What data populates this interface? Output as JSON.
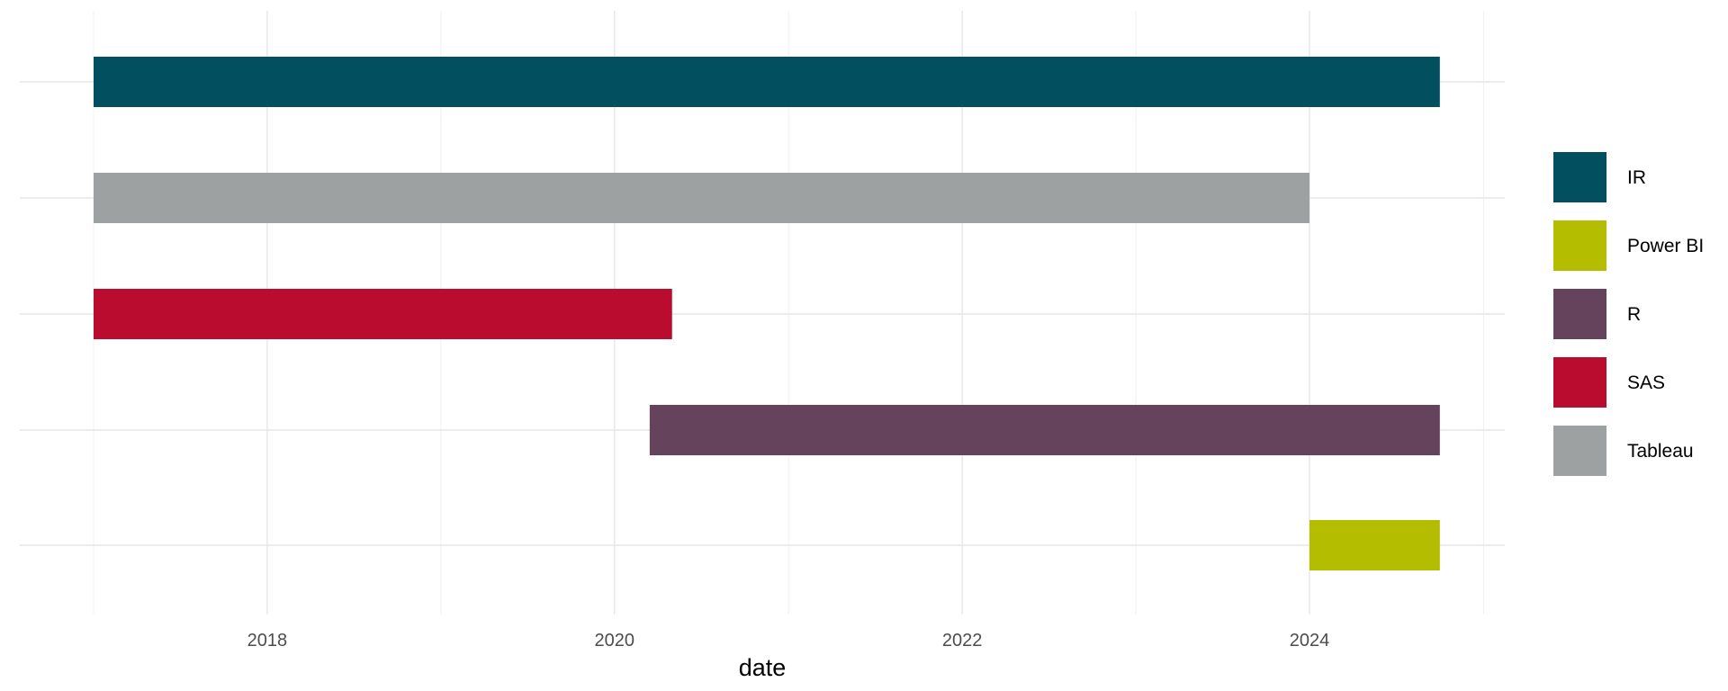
{
  "chart_data": {
    "type": "bar",
    "orientation": "horizontal",
    "xlabel": "date",
    "ylabel": "",
    "x_axis_type": "date",
    "xlim": [
      "2016-10-15",
      "2025-03-15"
    ],
    "x_ticks": [
      {
        "date": "2018-01-01",
        "label": "2018"
      },
      {
        "date": "2020-01-01",
        "label": "2020"
      },
      {
        "date": "2022-01-01",
        "label": "2022"
      },
      {
        "date": "2024-01-01",
        "label": "2024"
      }
    ],
    "x_minor_ticks": [
      "2017-01-01",
      "2019-01-01",
      "2021-01-01",
      "2023-01-01",
      "2025-01-01"
    ],
    "grid": true,
    "legend_position": "right",
    "series": [
      {
        "name": "IR",
        "color": "#02505F",
        "row": 1,
        "start": "2017-01-01",
        "end": "2024-10-01"
      },
      {
        "name": "Tableau",
        "color": "#9DA1A1",
        "row": 2,
        "start": "2017-01-01",
        "end": "2024-01-01"
      },
      {
        "name": "SAS",
        "color": "#BA0C2F",
        "row": 3,
        "start": "2017-01-01",
        "end": "2020-05-01"
      },
      {
        "name": "R",
        "color": "#65435C",
        "row": 4,
        "start": "2020-03-15",
        "end": "2024-10-01"
      },
      {
        "name": "Power BI",
        "color": "#B5BD00",
        "row": 5,
        "start": "2024-01-01",
        "end": "2024-10-01"
      }
    ],
    "legend": [
      {
        "name": "IR",
        "color": "#02505F"
      },
      {
        "name": "Power BI",
        "color": "#B5BD00"
      },
      {
        "name": "R",
        "color": "#65435C"
      },
      {
        "name": "SAS",
        "color": "#BA0C2F"
      },
      {
        "name": "Tableau",
        "color": "#9DA1A1"
      }
    ]
  }
}
